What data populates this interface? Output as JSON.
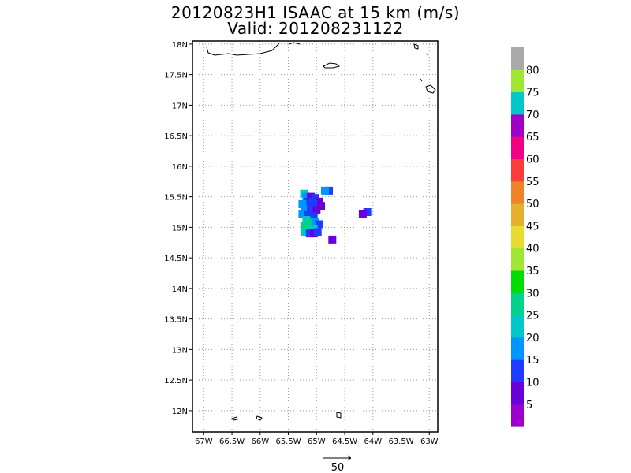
{
  "title_line1": "20120823H1 ISAAC at 15 km (m/s)",
  "title_line2": "Valid: 201208231122",
  "vector_ref_label": "50",
  "chart_data": {
    "type": "heatmap",
    "title": "20120823H1 ISAAC at 15 km (m/s)",
    "subtitle": "Valid: 201208231122",
    "x_ticks": [
      "67W",
      "66.5W",
      "66W",
      "65.5W",
      "65W",
      "64.5W",
      "64W",
      "63.5W",
      "63W"
    ],
    "x_values": [
      -67,
      -66.5,
      -66,
      -65.5,
      -65,
      -64.5,
      -64,
      -63.5,
      -63
    ],
    "y_ticks": [
      "12N",
      "12.5N",
      "13N",
      "13.5N",
      "14N",
      "14.5N",
      "15N",
      "15.5N",
      "16N",
      "16.5N",
      "17N",
      "17.5N",
      "18N"
    ],
    "y_values": [
      12,
      12.5,
      13,
      13.5,
      14,
      14.5,
      15,
      15.5,
      16,
      16.5,
      17,
      17.5,
      18
    ],
    "xlim": [
      -67.2,
      -62.85
    ],
    "ylim": [
      11.65,
      18.05
    ],
    "grid": true,
    "colorbar": {
      "labels": [
        "5",
        "10",
        "15",
        "20",
        "25",
        "30",
        "35",
        "40",
        "45",
        "50",
        "55",
        "60",
        "65",
        "70",
        "75",
        "80"
      ],
      "colors": [
        "#9b00cc",
        "#6a00d8",
        "#1e3cff",
        "#0096ff",
        "#00c8c8",
        "#00d28c",
        "#00dc00",
        "#a0e632",
        "#e6dc32",
        "#e6af2d",
        "#f08228",
        "#fa3c3c",
        "#f00082",
        "#a000c8",
        "#00c8c8",
        "#a0e632",
        "#aaaaaa"
      ]
    },
    "cells": [
      {
        "lon": -65.22,
        "lat": 15.55,
        "v": 20
      },
      {
        "lon": -65.18,
        "lat": 15.5,
        "v": 15
      },
      {
        "lon": -65.1,
        "lat": 15.5,
        "v": 8
      },
      {
        "lon": -65.02,
        "lat": 15.48,
        "v": 10
      },
      {
        "lon": -64.95,
        "lat": 15.42,
        "v": 8
      },
      {
        "lon": -65.15,
        "lat": 15.42,
        "v": 12
      },
      {
        "lon": -65.25,
        "lat": 15.38,
        "v": 18
      },
      {
        "lon": -65.05,
        "lat": 15.38,
        "v": 10
      },
      {
        "lon": -64.92,
        "lat": 15.35,
        "v": 6
      },
      {
        "lon": -65.2,
        "lat": 15.3,
        "v": 15
      },
      {
        "lon": -65.1,
        "lat": 15.3,
        "v": 10
      },
      {
        "lon": -65.0,
        "lat": 15.28,
        "v": 8
      },
      {
        "lon": -65.25,
        "lat": 15.22,
        "v": 15
      },
      {
        "lon": -65.15,
        "lat": 15.2,
        "v": 12
      },
      {
        "lon": -65.05,
        "lat": 15.18,
        "v": 10
      },
      {
        "lon": -65.18,
        "lat": 15.12,
        "v": 22
      },
      {
        "lon": -65.1,
        "lat": 15.08,
        "v": 25
      },
      {
        "lon": -65.02,
        "lat": 15.08,
        "v": 18
      },
      {
        "lon": -64.95,
        "lat": 15.05,
        "v": 10
      },
      {
        "lon": -65.2,
        "lat": 15.02,
        "v": 25
      },
      {
        "lon": -65.12,
        "lat": 14.98,
        "v": 28
      },
      {
        "lon": -65.05,
        "lat": 14.98,
        "v": 20
      },
      {
        "lon": -65.2,
        "lat": 14.92,
        "v": 22
      },
      {
        "lon": -65.12,
        "lat": 14.9,
        "v": 14
      },
      {
        "lon": -65.05,
        "lat": 14.9,
        "v": 8
      },
      {
        "lon": -64.98,
        "lat": 14.92,
        "v": 12
      },
      {
        "lon": -64.72,
        "lat": 14.8,
        "v": 7
      },
      {
        "lon": -64.78,
        "lat": 15.6,
        "v": 10
      },
      {
        "lon": -64.85,
        "lat": 15.6,
        "v": 15
      },
      {
        "lon": -64.1,
        "lat": 15.25,
        "v": 10
      },
      {
        "lon": -64.18,
        "lat": 15.22,
        "v": 8
      }
    ]
  }
}
